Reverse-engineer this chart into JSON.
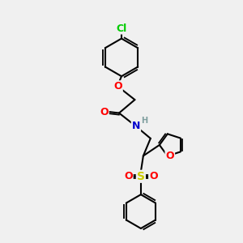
{
  "bg_color": "#f0f0f0",
  "atom_colors": {
    "C": "#000000",
    "N": "#0000cd",
    "O": "#ff0000",
    "S": "#cccc00",
    "Cl": "#00cc00",
    "H": "#7f9f9f"
  },
  "bond_color": "#000000",
  "bond_width": 1.5,
  "font_size": 8,
  "figsize": [
    3.0,
    3.0
  ],
  "dpi": 100
}
